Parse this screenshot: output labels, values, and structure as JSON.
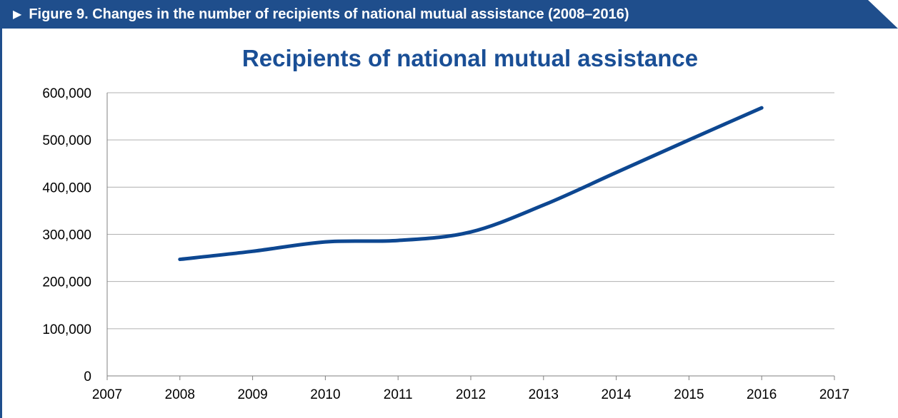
{
  "banner": {
    "arrow": "▶",
    "text": "Figure 9.  Changes in the number of recipients of national mutual assistance (2008–2016)"
  },
  "colors": {
    "banner_bg": "#1f4e8c",
    "title": "#1a4f96",
    "line": "#0d4791",
    "grid": "#b0b0b0",
    "axis": "#808080"
  },
  "chart_data": {
    "type": "line",
    "title": "Recipients of national mutual assistance",
    "xlabel": "",
    "ylabel": "",
    "xlim": [
      2007,
      2017
    ],
    "ylim": [
      0,
      600000
    ],
    "x_ticks": [
      2007,
      2008,
      2009,
      2010,
      2011,
      2012,
      2013,
      2014,
      2015,
      2016,
      2017
    ],
    "x_tick_labels": [
      "2007",
      "2008",
      "2009",
      "2010",
      "2011",
      "2012",
      "2013",
      "2014",
      "2015",
      "2016",
      "2017"
    ],
    "y_ticks": [
      0,
      100000,
      200000,
      300000,
      400000,
      500000,
      600000
    ],
    "y_tick_labels": [
      "0",
      "100,000",
      "200,000",
      "300,000",
      "400,000",
      "500,000",
      "600,000"
    ],
    "grid": "horizontal",
    "smooth": true,
    "legend": "none",
    "series": [
      {
        "x": [
          2008,
          2009,
          2010,
          2011,
          2012,
          2013,
          2014,
          2015,
          2016
        ],
        "values": [
          247000,
          264000,
          284000,
          287000,
          305000,
          362000,
          431000,
          500000,
          568000
        ]
      }
    ]
  }
}
